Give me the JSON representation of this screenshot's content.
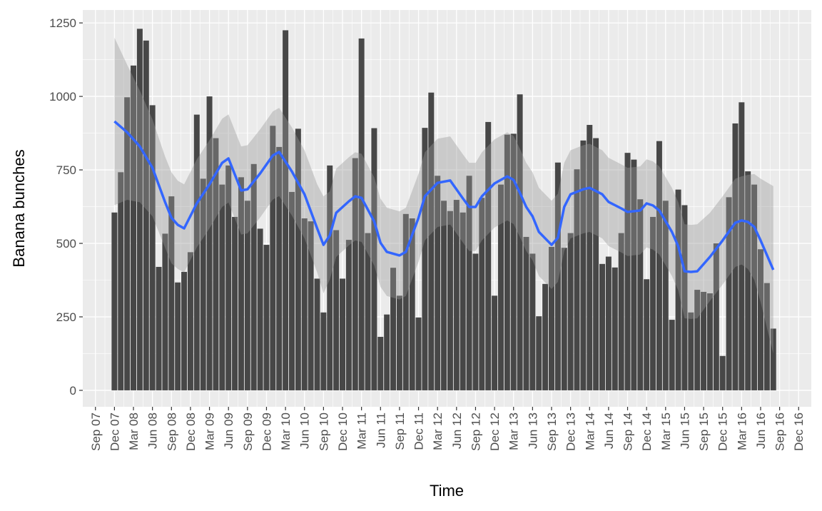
{
  "chart_data": {
    "type": "bar",
    "x_label": "Time",
    "y_label": "Banana bunches",
    "x": [
      "2007-12",
      "2008-01",
      "2008-02",
      "2008-03",
      "2008-04",
      "2008-05",
      "2008-06",
      "2008-07",
      "2008-08",
      "2008-09",
      "2008-10",
      "2008-11",
      "2008-12",
      "2009-01",
      "2009-02",
      "2009-03",
      "2009-04",
      "2009-05",
      "2009-06",
      "2009-07",
      "2009-08",
      "2009-09",
      "2009-10",
      "2009-11",
      "2009-12",
      "2010-01",
      "2010-02",
      "2010-03",
      "2010-04",
      "2010-05",
      "2010-06",
      "2010-07",
      "2010-08",
      "2010-09",
      "2010-10",
      "2010-11",
      "2010-12",
      "2011-01",
      "2011-02",
      "2011-03",
      "2011-04",
      "2011-05",
      "2011-06",
      "2011-07",
      "2011-08",
      "2011-09",
      "2011-10",
      "2011-11",
      "2011-12",
      "2012-01",
      "2012-02",
      "2012-03",
      "2012-04",
      "2012-05",
      "2012-06",
      "2012-07",
      "2012-08",
      "2012-09",
      "2012-10",
      "2012-11",
      "2012-12",
      "2013-01",
      "2013-02",
      "2013-03",
      "2013-04",
      "2013-05",
      "2013-06",
      "2013-07",
      "2013-08",
      "2013-09",
      "2013-10",
      "2013-11",
      "2013-12",
      "2014-01",
      "2014-02",
      "2014-03",
      "2014-04",
      "2014-05",
      "2014-06",
      "2014-07",
      "2014-08",
      "2014-09",
      "2014-10",
      "2014-11",
      "2014-12",
      "2015-01",
      "2015-02",
      "2015-03",
      "2015-04",
      "2015-05",
      "2015-06",
      "2015-07",
      "2015-08",
      "2015-09",
      "2015-10",
      "2015-11",
      "2015-12",
      "2016-01",
      "2016-02",
      "2016-03",
      "2016-04",
      "2016-05",
      "2016-06",
      "2016-07",
      "2016-08"
    ],
    "values": [
      605,
      742,
      997,
      1105,
      1230,
      1190,
      970,
      420,
      533,
      660,
      367,
      403,
      470,
      938,
      720,
      1000,
      858,
      700,
      765,
      590,
      725,
      645,
      770,
      550,
      495,
      900,
      828,
      1225,
      675,
      890,
      585,
      575,
      380,
      265,
      765,
      545,
      380,
      512,
      790,
      1197,
      535,
      892,
      182,
      258,
      417,
      322,
      600,
      585,
      248,
      893,
      1013,
      730,
      645,
      610,
      648,
      605,
      730,
      465,
      655,
      913,
      322,
      700,
      870,
      873,
      1007,
      522,
      465,
      252,
      362,
      488,
      775,
      485,
      535,
      752,
      850,
      903,
      858,
      430,
      455,
      418,
      535,
      808,
      785,
      650,
      378,
      590,
      848,
      645,
      240,
      683,
      630,
      265,
      342,
      335,
      330,
      500,
      117,
      657,
      908,
      980,
      745,
      700,
      480,
      365,
      210
    ],
    "color": "#474747",
    "xlim": [
      "2007-07",
      "2017-02"
    ],
    "xticks": [
      {
        "value": "2007-09",
        "label": "Sep 07"
      },
      {
        "value": "2007-12",
        "label": "Dec 07"
      },
      {
        "value": "2008-03",
        "label": "Mar 08"
      },
      {
        "value": "2008-06",
        "label": "Jun 08"
      },
      {
        "value": "2008-09",
        "label": "Sep 08"
      },
      {
        "value": "2008-12",
        "label": "Dec 08"
      },
      {
        "value": "2009-03",
        "label": "Mar 09"
      },
      {
        "value": "2009-06",
        "label": "Jun 09"
      },
      {
        "value": "2009-09",
        "label": "Sep 09"
      },
      {
        "value": "2009-12",
        "label": "Dec 09"
      },
      {
        "value": "2010-03",
        "label": "Mar 10"
      },
      {
        "value": "2010-06",
        "label": "Jun 10"
      },
      {
        "value": "2010-09",
        "label": "Sep 10"
      },
      {
        "value": "2010-12",
        "label": "Dec 10"
      },
      {
        "value": "2011-03",
        "label": "Mar 11"
      },
      {
        "value": "2011-06",
        "label": "Jun 11"
      },
      {
        "value": "2011-09",
        "label": "Sep 11"
      },
      {
        "value": "2011-12",
        "label": "Dec 11"
      },
      {
        "value": "2012-03",
        "label": "Mar 12"
      },
      {
        "value": "2012-06",
        "label": "Jun 12"
      },
      {
        "value": "2012-09",
        "label": "Sep 12"
      },
      {
        "value": "2012-12",
        "label": "Dec 12"
      },
      {
        "value": "2013-03",
        "label": "Mar 13"
      },
      {
        "value": "2013-06",
        "label": "Jun 13"
      },
      {
        "value": "2013-09",
        "label": "Sep 13"
      },
      {
        "value": "2013-12",
        "label": "Dec 13"
      },
      {
        "value": "2014-03",
        "label": "Mar 14"
      },
      {
        "value": "2014-06",
        "label": "Jun 14"
      },
      {
        "value": "2014-09",
        "label": "Sep 14"
      },
      {
        "value": "2014-12",
        "label": "Dec 14"
      },
      {
        "value": "2015-03",
        "label": "Mar 15"
      },
      {
        "value": "2015-06",
        "label": "Jun 15"
      },
      {
        "value": "2015-09",
        "label": "Sep 15"
      },
      {
        "value": "2015-12",
        "label": "Dec 15"
      },
      {
        "value": "2016-03",
        "label": "Mar 16"
      },
      {
        "value": "2016-06",
        "label": "Jun 16"
      },
      {
        "value": "2016-09",
        "label": "Sep 16"
      },
      {
        "value": "2016-12",
        "label": "Dec 16"
      }
    ],
    "ylim": [
      -56,
      1294
    ],
    "yticks": [
      0,
      250,
      500,
      750,
      1000,
      1250
    ],
    "grid": true,
    "smooth": {
      "type": "line",
      "color": "#3366FF",
      "band_color": "#999999",
      "x": [
        "2007-12",
        "2008-02",
        "2008-04",
        "2008-06",
        "2008-08",
        "2008-09",
        "2008-10",
        "2008-11",
        "2009-01",
        "2009-03",
        "2009-05",
        "2009-06",
        "2009-08",
        "2009-09",
        "2009-11",
        "2010-01",
        "2010-02",
        "2010-04",
        "2010-06",
        "2010-08",
        "2010-09",
        "2010-10",
        "2010-11",
        "2011-01",
        "2011-02",
        "2011-03",
        "2011-05",
        "2011-06",
        "2011-07",
        "2011-09",
        "2011-10",
        "2011-12",
        "2012-01",
        "2012-03",
        "2012-05",
        "2012-07",
        "2012-08",
        "2012-09",
        "2012-10",
        "2012-12",
        "2013-02",
        "2013-03",
        "2013-04",
        "2013-05",
        "2013-06",
        "2013-07",
        "2013-09",
        "2013-10",
        "2013-11",
        "2013-12",
        "2014-02",
        "2014-03",
        "2014-05",
        "2014-06",
        "2014-08",
        "2014-09",
        "2014-11",
        "2014-12",
        "2015-01",
        "2015-02",
        "2015-04",
        "2015-05",
        "2015-06",
        "2015-07",
        "2015-08",
        "2015-10",
        "2015-12",
        "2016-02",
        "2016-03",
        "2016-04",
        "2016-05",
        "2016-06",
        "2016-08"
      ],
      "values": [
        915,
        878,
        830,
        757,
        640,
        587,
        563,
        551,
        636,
        701,
        774,
        789,
        680,
        684,
        738,
        799,
        811,
        745,
        667,
        551,
        495,
        527,
        604,
        643,
        660,
        655,
        575,
        502,
        471,
        459,
        471,
        587,
        660,
        706,
        714,
        653,
        624,
        624,
        660,
        704,
        728,
        716,
        672,
        624,
        592,
        539,
        495,
        519,
        624,
        667,
        684,
        689,
        667,
        641,
        619,
        607,
        612,
        636,
        629,
        612,
        539,
        490,
        405,
        403,
        405,
        454,
        510,
        570,
        578,
        573,
        556,
        510,
        410
      ],
      "upper": [
        1200,
        1108,
        1020,
        922,
        795,
        742,
        713,
        701,
        786,
        851,
        924,
        939,
        830,
        834,
        888,
        949,
        961,
        895,
        817,
        701,
        660,
        677,
        754,
        793,
        810,
        805,
        725,
        652,
        621,
        609,
        621,
        737,
        810,
        856,
        864,
        803,
        774,
        774,
        810,
        854,
        878,
        866,
        822,
        774,
        742,
        689,
        645,
        669,
        774,
        817,
        834,
        839,
        817,
        791,
        769,
        757,
        762,
        786,
        779,
        762,
        689,
        640,
        565,
        563,
        565,
        604,
        660,
        720,
        728,
        733,
        736,
        720,
        695
      ],
      "lower": [
        630,
        648,
        640,
        592,
        485,
        432,
        413,
        401,
        486,
        551,
        624,
        639,
        530,
        534,
        588,
        649,
        661,
        595,
        517,
        401,
        330,
        377,
        454,
        493,
        510,
        505,
        425,
        352,
        321,
        309,
        321,
        437,
        510,
        556,
        564,
        503,
        474,
        474,
        510,
        554,
        578,
        566,
        522,
        474,
        442,
        389,
        345,
        369,
        474,
        517,
        534,
        539,
        517,
        491,
        469,
        457,
        462,
        486,
        479,
        462,
        389,
        340,
        245,
        243,
        245,
        304,
        360,
        420,
        428,
        413,
        376,
        300,
        125
      ]
    }
  }
}
